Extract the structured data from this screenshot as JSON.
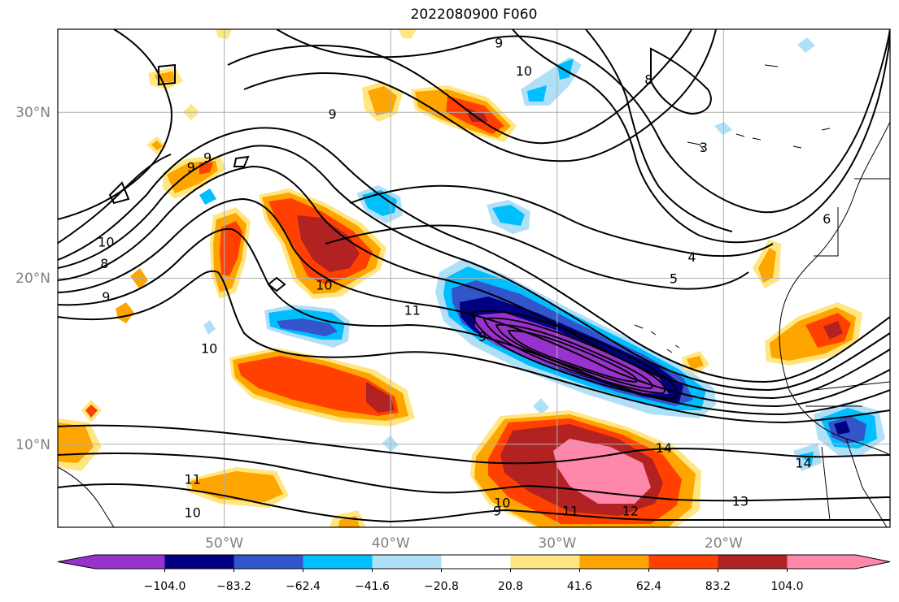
{
  "title": "2022080900 F060",
  "axes": {
    "lon_ticks": [
      "50°W",
      "40°W",
      "30°W",
      "20°W"
    ],
    "lat_ticks": [
      "30°N",
      "20°N",
      "10°N"
    ],
    "lon_range": [
      -60,
      -10
    ],
    "lat_range": [
      5,
      35
    ]
  },
  "colorbar": {
    "tick_labels": [
      "−104.0",
      "−83.2",
      "−62.4",
      "−41.6",
      "−20.8",
      "20.8",
      "41.6",
      "62.4",
      "83.2",
      "104.0"
    ],
    "colors": [
      "#9932cc",
      "#000080",
      "#3355cc",
      "#00bfff",
      "#b0e0f8",
      "#ffffff",
      "#ffe680",
      "#ffa500",
      "#ff4000",
      "#b22222",
      "#ff88aa"
    ],
    "extend": "both"
  },
  "contour_labels": [
    {
      "text": "9",
      "lon": -33.5,
      "lat": 34.2
    },
    {
      "text": "10",
      "lon": -32,
      "lat": 32.5
    },
    {
      "text": "8",
      "lon": -24.5,
      "lat": 32
    },
    {
      "text": "9",
      "lon": -43.5,
      "lat": 29.9
    },
    {
      "text": "3",
      "lon": -21.2,
      "lat": 27.9
    },
    {
      "text": "9",
      "lon": -51,
      "lat": 27.3
    },
    {
      "text": "9",
      "lon": -52,
      "lat": 26.7
    },
    {
      "text": "6",
      "lon": -13.8,
      "lat": 23.6
    },
    {
      "text": "10",
      "lon": -57.1,
      "lat": 22.2
    },
    {
      "text": "8",
      "lon": -57.2,
      "lat": 20.9
    },
    {
      "text": "4",
      "lon": -21.9,
      "lat": 21.3
    },
    {
      "text": "5",
      "lon": -23.0,
      "lat": 20.0
    },
    {
      "text": "10",
      "lon": -44,
      "lat": 19.6
    },
    {
      "text": "9",
      "lon": -57.1,
      "lat": 18.9
    },
    {
      "text": "11",
      "lon": -38.7,
      "lat": 18.1
    },
    {
      "text": "10",
      "lon": -50.9,
      "lat": 15.8
    },
    {
      "text": "9",
      "lon": -34.5,
      "lat": 16.5
    },
    {
      "text": "14",
      "lon": -23.6,
      "lat": 9.8
    },
    {
      "text": "14",
      "lon": -15.2,
      "lat": 8.9
    },
    {
      "text": "11",
      "lon": -51.9,
      "lat": 7.9
    },
    {
      "text": "10",
      "lon": -51.9,
      "lat": 5.9
    },
    {
      "text": "10",
      "lon": -33.3,
      "lat": 6.5
    },
    {
      "text": "9",
      "lon": -33.6,
      "lat": 6.0
    },
    {
      "text": "11",
      "lon": -29.2,
      "lat": 6.0
    },
    {
      "text": "12",
      "lon": -25.6,
      "lat": 6.0
    },
    {
      "text": "13",
      "lon": -19.0,
      "lat": 6.6
    }
  ]
}
